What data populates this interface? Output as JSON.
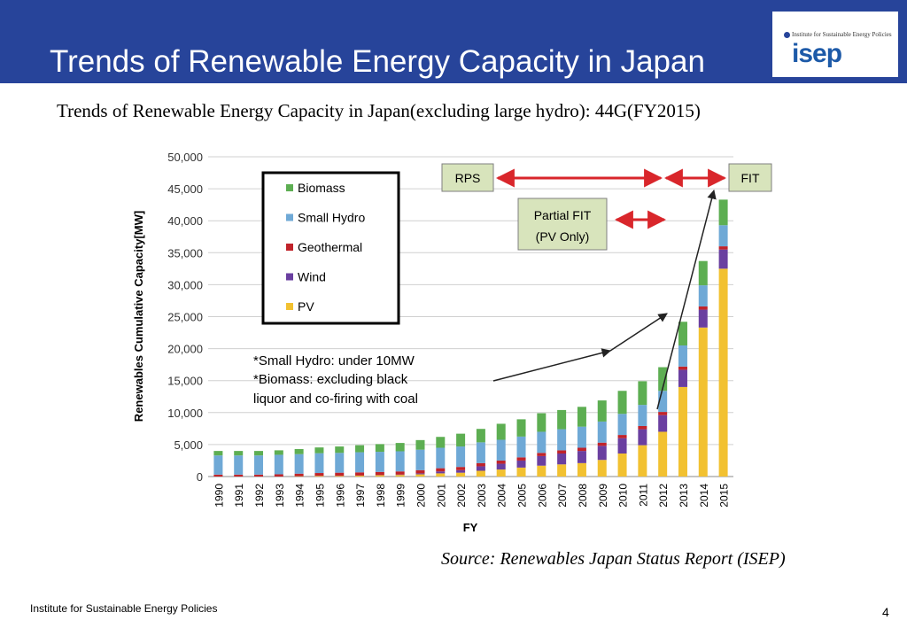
{
  "header": {
    "title": "Trends of Renewable Energy Capacity in Japan",
    "logo_tagline": "Institute for Sustainable Energy Policies",
    "logo_text": "isep"
  },
  "subtitle": "Trends of Renewable Energy Capacity in Japan(excluding large hydro): 44G(FY2015)",
  "source": "Source: Renewables Japan Status Report (ISEP)",
  "footer": {
    "org": "Institute for Sustainable Energy Policies",
    "page": "4"
  },
  "colors": {
    "header": "#27449a",
    "pv": "#f2c131",
    "wind": "#6a3fa0",
    "geothermal": "#c0232a",
    "small_hydro": "#6fa9d6",
    "biomass": "#5dae52",
    "arrow_red": "#d9262b"
  },
  "chart_data": {
    "type": "bar",
    "stacked": true,
    "xlabel": "FY",
    "ylabel": "Renewables Cumulative Capacity[MW]",
    "ylim": [
      0,
      50000
    ],
    "yticks": [
      "0",
      "5,000",
      "10,000",
      "15,000",
      "20,000",
      "25,000",
      "30,000",
      "35,000",
      "40,000",
      "45,000",
      "50,000"
    ],
    "grid": true,
    "legend_placement": "top-left",
    "categories": [
      "1990",
      "1991",
      "1992",
      "1993",
      "1994",
      "1995",
      "1996",
      "1997",
      "1998",
      "1999",
      "2000",
      "2001",
      "2002",
      "2003",
      "2004",
      "2005",
      "2006",
      "2007",
      "2008",
      "2009",
      "2010",
      "2011",
      "2012",
      "2013",
      "2014",
      "2015"
    ],
    "legend_order": [
      "Biomass",
      "Small Hydro",
      "Geothermal",
      "Wind",
      "PV"
    ],
    "series": [
      {
        "name": "PV",
        "color": "#f2c131",
        "values": [
          0,
          0,
          0,
          0,
          50,
          100,
          100,
          150,
          200,
          250,
          350,
          500,
          600,
          900,
          1100,
          1400,
          1700,
          1900,
          2100,
          2600,
          3600,
          4900,
          7000,
          14000,
          23300,
          32500
        ]
      },
      {
        "name": "Wind",
        "color": "#6a3fa0",
        "values": [
          0,
          0,
          0,
          0,
          0,
          0,
          0,
          0,
          20,
          50,
          150,
          300,
          400,
          700,
          900,
          1100,
          1500,
          1700,
          1900,
          2200,
          2400,
          2500,
          2600,
          2700,
          2800,
          3000
        ]
      },
      {
        "name": "Geothermal",
        "color": "#c0232a",
        "values": [
          300,
          300,
          300,
          350,
          400,
          450,
          500,
          500,
          500,
          500,
          500,
          500,
          500,
          500,
          500,
          500,
          500,
          500,
          500,
          500,
          500,
          500,
          500,
          500,
          500,
          500
        ]
      },
      {
        "name": "Small Hydro",
        "color": "#6fa9d6",
        "values": [
          3000,
          3000,
          3000,
          3050,
          3050,
          3100,
          3100,
          3150,
          3150,
          3150,
          3200,
          3200,
          3200,
          3250,
          3250,
          3250,
          3300,
          3300,
          3300,
          3300,
          3300,
          3300,
          3300,
          3300,
          3300,
          3300
        ]
      },
      {
        "name": "Biomass",
        "color": "#5dae52",
        "values": [
          700,
          700,
          700,
          700,
          800,
          900,
          1000,
          1100,
          1200,
          1300,
          1500,
          1700,
          2000,
          2100,
          2500,
          2700,
          2900,
          3000,
          3100,
          3300,
          3600,
          3700,
          3700,
          3700,
          3800,
          4000
        ]
      }
    ],
    "annotations": {
      "note_lines": [
        "*Small Hydro: under 10MW",
        "*Biomass: excluding black",
        "liquor and co-firing with coal"
      ],
      "rps_label": "RPS",
      "partial_fit_lines": [
        "Partial FIT",
        "(PV Only)"
      ],
      "fit_label": "FIT"
    }
  }
}
